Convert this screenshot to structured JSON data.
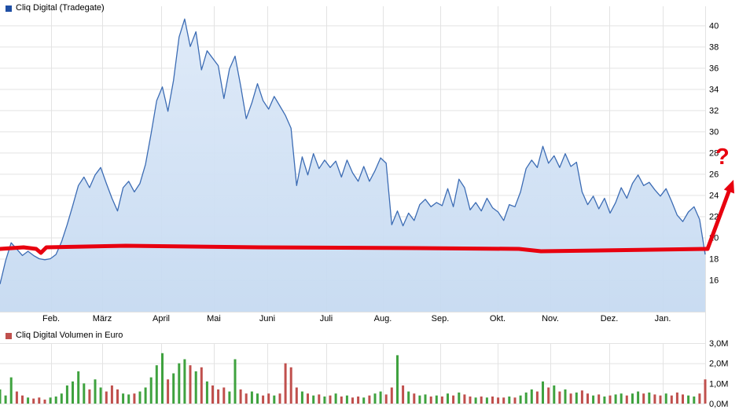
{
  "annotation": {
    "question_mark": "?",
    "color": "#e8000f",
    "support_line_price": "18"
  },
  "chart_data": [
    {
      "type": "area",
      "title": "Cliq Digital (Tradegate)",
      "legend_color": "#1f4fa4",
      "line_color": "#3c6cb4",
      "fill_top": "#dde9f8",
      "fill_bottom": "#c6daf1",
      "grid": true,
      "legend_position": "top-left",
      "x_tick_labels": [
        "Feb.",
        "März",
        "April",
        "Mai",
        "Juni",
        "Juli",
        "Aug.",
        "Sep.",
        "Okt.",
        "Nov.",
        "Dez.",
        "Jan."
      ],
      "y_ticks": [
        16,
        18,
        20,
        22,
        24,
        26,
        28,
        30,
        32,
        34,
        36,
        38,
        40
      ],
      "ylim": [
        13,
        41.8
      ],
      "values": [
        15.6,
        17.8,
        19.5,
        18.9,
        18.3,
        18.7,
        18.3,
        18.0,
        17.9,
        18.0,
        18.4,
        19.6,
        21.2,
        23.0,
        24.9,
        25.7,
        24.7,
        25.9,
        26.6,
        25.1,
        23.7,
        22.5,
        24.7,
        25.3,
        24.3,
        25.1,
        26.9,
        29.8,
        32.9,
        34.2,
        31.9,
        34.8,
        38.9,
        40.6,
        38.0,
        39.4,
        35.8,
        37.6,
        36.9,
        36.2,
        33.1,
        35.9,
        37.1,
        34.3,
        31.2,
        32.7,
        34.5,
        32.9,
        32.1,
        33.3,
        32.4,
        31.5,
        30.3,
        24.9,
        27.6,
        25.9,
        27.9,
        26.5,
        27.3,
        26.6,
        27.2,
        25.7,
        27.3,
        26.1,
        25.3,
        26.7,
        25.3,
        26.3,
        27.5,
        27.0,
        21.2,
        22.5,
        21.1,
        22.3,
        21.6,
        23.1,
        23.6,
        22.9,
        23.3,
        23.0,
        24.6,
        22.9,
        25.5,
        24.7,
        22.6,
        23.3,
        22.5,
        23.7,
        22.8,
        22.4,
        21.6,
        23.1,
        22.9,
        24.3,
        26.5,
        27.3,
        26.6,
        28.6,
        27.0,
        27.7,
        26.6,
        27.9,
        26.7,
        27.1,
        24.3,
        23.1,
        23.9,
        22.7,
        23.7,
        22.3,
        23.3,
        24.7,
        23.7,
        25.1,
        25.9,
        24.9,
        25.2,
        24.5,
        23.9,
        24.6,
        23.4,
        22.1,
        21.5,
        22.4,
        22.9,
        21.7,
        18.4
      ]
    },
    {
      "type": "bar",
      "title": "Cliq Digital Volumen in Euro",
      "legend_color": "#c0504d",
      "up_color": "#3fa23f",
      "down_color": "#c0504d",
      "color_rule": "green when price closed higher than previous point, red when lower",
      "y_ticks": [
        {
          "label": "0,0M",
          "value": 0
        },
        {
          "label": "1,0M",
          "value": 1
        },
        {
          "label": "2,0M",
          "value": 2
        },
        {
          "label": "3,0M",
          "value": 3
        }
      ],
      "ylim": [
        0,
        3
      ],
      "values": [
        0.7,
        0.4,
        1.3,
        0.6,
        0.4,
        0.3,
        0.25,
        0.3,
        0.2,
        0.3,
        0.35,
        0.5,
        0.9,
        1.1,
        1.6,
        1.0,
        0.7,
        1.2,
        0.8,
        0.6,
        0.9,
        0.7,
        0.5,
        0.45,
        0.5,
        0.6,
        0.8,
        1.3,
        1.9,
        2.5,
        1.2,
        1.5,
        2.0,
        2.2,
        1.9,
        1.6,
        1.8,
        1.1,
        0.9,
        0.7,
        0.8,
        0.6,
        2.2,
        0.7,
        0.5,
        0.6,
        0.5,
        0.4,
        0.5,
        0.4,
        0.5,
        2.0,
        1.8,
        0.8,
        0.6,
        0.5,
        0.4,
        0.45,
        0.35,
        0.4,
        0.5,
        0.35,
        0.4,
        0.3,
        0.35,
        0.3,
        0.4,
        0.5,
        0.6,
        0.45,
        0.8,
        2.4,
        0.9,
        0.6,
        0.5,
        0.4,
        0.45,
        0.35,
        0.4,
        0.35,
        0.5,
        0.4,
        0.55,
        0.45,
        0.35,
        0.3,
        0.35,
        0.3,
        0.35,
        0.3,
        0.3,
        0.35,
        0.3,
        0.4,
        0.55,
        0.7,
        0.6,
        1.1,
        0.8,
        0.9,
        0.6,
        0.7,
        0.5,
        0.55,
        0.65,
        0.5,
        0.4,
        0.45,
        0.35,
        0.4,
        0.45,
        0.5,
        0.4,
        0.5,
        0.6,
        0.5,
        0.55,
        0.45,
        0.4,
        0.5,
        0.4,
        0.55,
        0.45,
        0.4,
        0.35,
        0.5,
        1.2
      ]
    }
  ]
}
